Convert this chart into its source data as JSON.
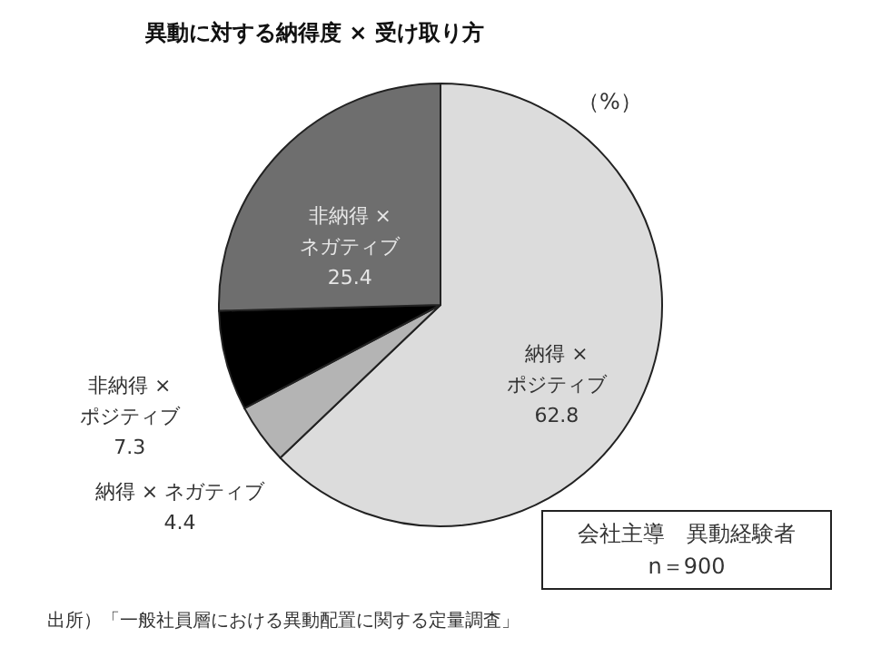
{
  "chart_data": {
    "type": "pie",
    "title": "異動に対する納得度 × 受け取り方",
    "categories": [
      "納得 × ポジティブ",
      "納得 × ネガティブ",
      "非納得 × ポジティブ",
      "非納得 × ネガティブ"
    ],
    "values": [
      62.8,
      4.4,
      7.3,
      25.4
    ],
    "colors": [
      "#dcdcdc",
      "#b4b4b4",
      "#000000",
      "#6e6e6e"
    ],
    "data_labels": true,
    "annotations": [
      "（%）",
      "会社主導　異動経験者\nn＝900",
      "出所）「一般社員層における異動配置に関する定量調査」"
    ]
  }
}
